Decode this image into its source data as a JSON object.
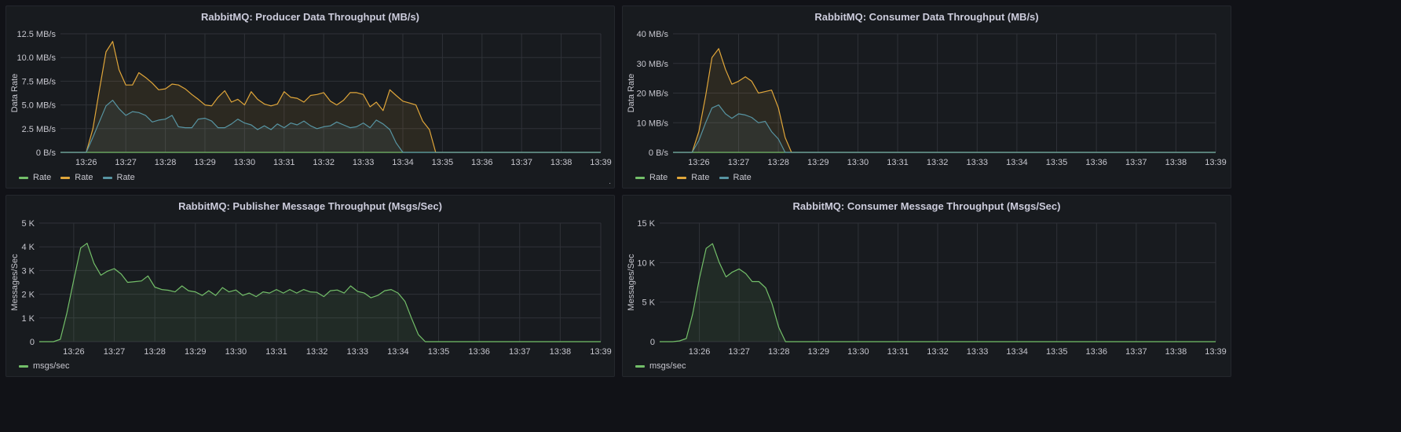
{
  "panels": [
    {
      "title": "RabbitMQ: Producer Data Throughput (MB/s)",
      "ylabel": "Data Rate",
      "chart_data": {
        "type": "area",
        "title": "RabbitMQ: Producer Data Throughput (MB/s)",
        "ylabel": "Data Rate",
        "xlabel": "",
        "ylim": [
          0,
          12.5
        ],
        "yticks": [
          0,
          2.5,
          5.0,
          7.5,
          10.0,
          12.5
        ],
        "ytick_labels": [
          "0 B/s",
          "2.5 MB/s",
          "5.0 MB/s",
          "7.5 MB/s",
          "10.0 MB/s",
          "12.5 MB/s"
        ],
        "xlim": [
          25.35,
          39.0
        ],
        "xticks": [
          26,
          27,
          28,
          29,
          30,
          31,
          32,
          33,
          34,
          35,
          36,
          37,
          38,
          39
        ],
        "xtick_labels": [
          "13:26",
          "13:27",
          "13:28",
          "13:29",
          "13:30",
          "13:31",
          "13:32",
          "13:33",
          "13:34",
          "13:35",
          "13:36",
          "13:37",
          "13:38",
          "13:39"
        ],
        "legend_position": "bottom-left",
        "grid": true,
        "series": [
          {
            "name": "Rate",
            "color": "#73bf69",
            "x": [
              25.35,
              39.0
            ],
            "values": [
              0,
              0
            ]
          },
          {
            "name": "Rate",
            "color": "#e0a63a",
            "x": [
              25.35,
              25.5,
              25.67,
              25.83,
              26.0,
              26.17,
              26.33,
              26.5,
              26.67,
              26.83,
              27.0,
              27.17,
              27.33,
              27.5,
              27.67,
              27.83,
              28.0,
              28.17,
              28.33,
              28.5,
              28.67,
              28.83,
              29.0,
              29.17,
              29.33,
              29.5,
              29.67,
              29.83,
              30.0,
              30.17,
              30.33,
              30.5,
              30.67,
              30.83,
              31.0,
              31.17,
              31.33,
              31.5,
              31.67,
              31.83,
              32.0,
              32.17,
              32.33,
              32.5,
              32.67,
              32.83,
              33.0,
              33.17,
              33.33,
              33.5,
              33.67,
              33.83,
              34.0,
              34.17,
              34.33,
              34.5,
              34.67,
              34.83,
              35.0,
              35.17,
              35.33,
              35.5,
              35.67,
              35.83,
              36.0,
              36.17,
              36.33,
              36.5,
              36.67,
              36.83,
              37.0,
              37.17,
              37.33,
              37.5,
              37.67,
              37.83,
              38.0,
              38.17,
              38.33,
              38.5,
              38.67,
              38.83,
              39.0
            ],
            "values": [
              0,
              0,
              0,
              0,
              0,
              2.5,
              6.5,
              10.6,
              11.7,
              8.7,
              7.1,
              7.1,
              8.4,
              7.9,
              7.3,
              6.6,
              6.7,
              7.2,
              7.1,
              6.7,
              6.1,
              5.6,
              5.0,
              4.9,
              5.8,
              6.5,
              5.3,
              5.6,
              5.0,
              6.4,
              5.6,
              5.1,
              4.9,
              5.1,
              6.4,
              5.8,
              5.7,
              5.3,
              6.0,
              6.1,
              6.3,
              5.4,
              5.0,
              5.5,
              6.3,
              6.3,
              6.1,
              4.8,
              5.3,
              4.4,
              6.6,
              6.0,
              5.4,
              5.2,
              5.0,
              3.3,
              2.4,
              0,
              0,
              0,
              0,
              0,
              0,
              0,
              0,
              0,
              0,
              0,
              0,
              0,
              0,
              0,
              0,
              0,
              0,
              0,
              0,
              0,
              0,
              0,
              0,
              0,
              0
            ]
          },
          {
            "name": "Rate",
            "color": "#5794a2",
            "x": [
              25.35,
              25.5,
              25.67,
              25.83,
              26.0,
              26.17,
              26.33,
              26.5,
              26.67,
              26.83,
              27.0,
              27.17,
              27.33,
              27.5,
              27.67,
              27.83,
              28.0,
              28.17,
              28.33,
              28.5,
              28.67,
              28.83,
              29.0,
              29.17,
              29.33,
              29.5,
              29.67,
              29.83,
              30.0,
              30.17,
              30.33,
              30.5,
              30.67,
              30.83,
              31.0,
              31.17,
              31.33,
              31.5,
              31.67,
              31.83,
              32.0,
              32.17,
              32.33,
              32.5,
              32.67,
              32.83,
              33.0,
              33.17,
              33.33,
              33.5,
              33.67,
              33.83,
              34.0,
              34.17,
              34.33,
              34.5,
              34.67,
              34.83,
              35.0,
              35.17,
              35.33,
              35.5,
              35.67,
              35.83,
              36.0,
              36.17,
              36.33,
              36.5,
              36.67,
              36.83,
              37.0,
              37.17,
              37.33,
              37.5,
              37.67,
              37.83,
              38.0,
              38.17,
              38.33,
              38.5,
              38.67,
              38.83,
              39.0
            ],
            "values": [
              0,
              0,
              0,
              0,
              0,
              1.6,
              3.2,
              4.9,
              5.5,
              4.6,
              3.9,
              4.3,
              4.2,
              3.9,
              3.2,
              3.4,
              3.5,
              3.9,
              2.7,
              2.6,
              2.6,
              3.5,
              3.6,
              3.3,
              2.6,
              2.6,
              3.0,
              3.5,
              3.1,
              2.9,
              2.4,
              2.8,
              2.4,
              3.0,
              2.6,
              3.1,
              2.9,
              3.3,
              2.8,
              2.5,
              2.7,
              2.8,
              3.2,
              2.9,
              2.6,
              2.7,
              3.1,
              2.6,
              3.4,
              3.0,
              2.4,
              1.0,
              0,
              0,
              0,
              0,
              0,
              0,
              0,
              0,
              0,
              0,
              0,
              0,
              0,
              0,
              0,
              0,
              0,
              0,
              0,
              0,
              0,
              0,
              0,
              0,
              0,
              0,
              0,
              0,
              0,
              0,
              0
            ]
          }
        ]
      }
    },
    {
      "title": "RabbitMQ: Consumer Data Throughput (MB/s)",
      "ylabel": "Data Rate",
      "chart_data": {
        "type": "area",
        "title": "RabbitMQ: Consumer Data Throughput (MB/s)",
        "ylabel": "Data Rate",
        "xlabel": "",
        "ylim": [
          0,
          40
        ],
        "yticks": [
          0,
          10,
          20,
          30,
          40
        ],
        "ytick_labels": [
          "0 B/s",
          "10 MB/s",
          "20 MB/s",
          "30 MB/s",
          "40 MB/s"
        ],
        "xlim": [
          25.35,
          39.0
        ],
        "xticks": [
          26,
          27,
          28,
          29,
          30,
          31,
          32,
          33,
          34,
          35,
          36,
          37,
          38,
          39
        ],
        "xtick_labels": [
          "13:26",
          "13:27",
          "13:28",
          "13:29",
          "13:30",
          "13:31",
          "13:32",
          "13:33",
          "13:34",
          "13:35",
          "13:36",
          "13:37",
          "13:38",
          "13:39"
        ],
        "legend_position": "bottom-left",
        "grid": true,
        "series": [
          {
            "name": "Rate",
            "color": "#73bf69",
            "x": [
              25.35,
              39.0
            ],
            "values": [
              0,
              0
            ]
          },
          {
            "name": "Rate",
            "color": "#e0a63a",
            "x": [
              25.35,
              25.5,
              25.67,
              25.83,
              26.0,
              26.17,
              26.33,
              26.5,
              26.67,
              26.83,
              27.0,
              27.17,
              27.33,
              27.5,
              27.67,
              27.83,
              28.0,
              28.17,
              28.33,
              28.5,
              28.67,
              28.83,
              29.0,
              29.17,
              29.33,
              29.5,
              29.67,
              39.0
            ],
            "values": [
              0,
              0,
              0,
              0,
              7,
              19,
              32,
              35,
              28,
              23,
              24,
              25.5,
              24,
              20,
              20.5,
              21,
              15,
              5,
              0,
              0,
              0,
              0,
              0,
              0,
              0,
              0,
              0,
              0
            ]
          },
          {
            "name": "Rate",
            "color": "#5794a2",
            "x": [
              25.35,
              25.5,
              25.67,
              25.83,
              26.0,
              26.17,
              26.33,
              26.5,
              26.67,
              26.83,
              27.0,
              27.17,
              27.33,
              27.5,
              27.67,
              27.83,
              28.0,
              28.17,
              28.33,
              28.5,
              28.67,
              28.83,
              29.0,
              29.17,
              29.33,
              29.5,
              29.67,
              39.0
            ],
            "values": [
              0,
              0,
              0,
              0,
              4,
              10,
              15,
              16,
              13,
              11.5,
              13,
              12.6,
              11.8,
              10,
              10.5,
              7,
              4.5,
              0,
              0,
              0,
              0,
              0,
              0,
              0,
              0,
              0,
              0,
              0
            ]
          }
        ]
      }
    },
    {
      "title": "RabbitMQ: Publisher Message Throughput (Msgs/Sec)",
      "ylabel": "Messages/Sec",
      "chart_data": {
        "type": "area",
        "title": "RabbitMQ: Publisher Message Throughput (Msgs/Sec)",
        "ylabel": "Messages/Sec",
        "xlabel": "",
        "ylim": [
          0,
          5000
        ],
        "yticks": [
          0,
          1000,
          2000,
          3000,
          4000,
          5000
        ],
        "ytick_labels": [
          "0",
          "1 K",
          "2 K",
          "3 K",
          "4 K",
          "5 K"
        ],
        "xlim": [
          25.15,
          39.0
        ],
        "xticks": [
          26,
          27,
          28,
          29,
          30,
          31,
          32,
          33,
          34,
          35,
          36,
          37,
          38,
          39
        ],
        "xtick_labels": [
          "13:26",
          "13:27",
          "13:28",
          "13:29",
          "13:30",
          "13:31",
          "13:32",
          "13:33",
          "13:34",
          "13:35",
          "13:36",
          "13:37",
          "13:38",
          "13:39"
        ],
        "legend_position": "bottom-left",
        "grid": true,
        "series": [
          {
            "name": "msgs/sec",
            "color": "#73bf69",
            "x": [
              25.15,
              25.35,
              25.5,
              25.67,
              25.83,
              26.0,
              26.17,
              26.33,
              26.5,
              26.67,
              26.83,
              27.0,
              27.17,
              27.33,
              27.5,
              27.67,
              27.83,
              28.0,
              28.17,
              28.33,
              28.5,
              28.67,
              28.83,
              29.0,
              29.17,
              29.33,
              29.5,
              29.67,
              29.83,
              30.0,
              30.17,
              30.33,
              30.5,
              30.67,
              30.83,
              31.0,
              31.17,
              31.33,
              31.5,
              31.67,
              31.83,
              32.0,
              32.17,
              32.33,
              32.5,
              32.67,
              32.83,
              33.0,
              33.17,
              33.33,
              33.5,
              33.67,
              33.83,
              34.0,
              34.17,
              34.33,
              34.5,
              34.67,
              34.83,
              35.0,
              35.17,
              35.33,
              35.5,
              35.67,
              35.83,
              36.0,
              36.17,
              36.33,
              36.5,
              36.67,
              36.83,
              37.0,
              37.17,
              37.33,
              37.5,
              37.67,
              37.83,
              38.0,
              38.17,
              38.33,
              38.5,
              38.67,
              38.83,
              39.0
            ],
            "values": [
              0,
              0,
              0,
              100,
              1200,
              2600,
              3950,
              4150,
              3300,
              2800,
              2970,
              3080,
              2850,
              2500,
              2530,
              2560,
              2770,
              2300,
              2200,
              2170,
              2100,
              2350,
              2150,
              2100,
              1950,
              2150,
              1950,
              2280,
              2100,
              2180,
              1950,
              2050,
              1900,
              2100,
              2050,
              2200,
              2050,
              2200,
              2050,
              2200,
              2100,
              2080,
              1900,
              2150,
              2180,
              2050,
              2350,
              2120,
              2050,
              1850,
              1950,
              2150,
              2200,
              2050,
              1700,
              1000,
              300,
              0,
              0,
              0,
              0,
              0,
              0,
              0,
              0,
              0,
              0,
              0,
              0,
              0,
              0,
              0,
              0,
              0,
              0,
              0,
              0,
              0,
              0,
              0,
              0,
              0,
              0,
              0
            ]
          }
        ]
      }
    },
    {
      "title": "RabbitMQ: Consumer Message Throughput (Msgs/Sec)",
      "ylabel": "Messages/Sec",
      "chart_data": {
        "type": "area",
        "title": "RabbitMQ: Consumer Message Throughput (Msgs/Sec)",
        "ylabel": "Messages/Sec",
        "xlabel": "",
        "ylim": [
          0,
          15000
        ],
        "yticks": [
          0,
          5000,
          10000,
          15000
        ],
        "ytick_labels": [
          "0",
          "5 K",
          "10 K",
          "15 K"
        ],
        "xlim": [
          25.0,
          39.0
        ],
        "xticks": [
          26,
          27,
          28,
          29,
          30,
          31,
          32,
          33,
          34,
          35,
          36,
          37,
          38,
          39
        ],
        "xtick_labels": [
          "13:26",
          "13:27",
          "13:28",
          "13:29",
          "13:30",
          "13:31",
          "13:32",
          "13:33",
          "13:34",
          "13:35",
          "13:36",
          "13:37",
          "13:38",
          "13:39"
        ],
        "legend_position": "bottom-left",
        "grid": true,
        "series": [
          {
            "name": "msgs/sec",
            "color": "#73bf69",
            "x": [
              25.0,
              25.33,
              25.5,
              25.67,
              25.83,
              26.0,
              26.17,
              26.33,
              26.5,
              26.67,
              26.83,
              27.0,
              27.17,
              27.33,
              27.5,
              27.67,
              27.83,
              28.0,
              28.17,
              28.33,
              28.5,
              28.67,
              28.83,
              29.0,
              29.17,
              29.33,
              29.5,
              29.67,
              39.0
            ],
            "values": [
              0,
              0,
              100,
              400,
              3500,
              8000,
              11800,
              12400,
              10000,
              8200,
              8800,
              9200,
              8600,
              7600,
              7600,
              6800,
              4800,
              1800,
              0,
              0,
              0,
              0,
              0,
              0,
              0,
              0,
              0,
              0,
              0
            ]
          }
        ]
      }
    }
  ]
}
